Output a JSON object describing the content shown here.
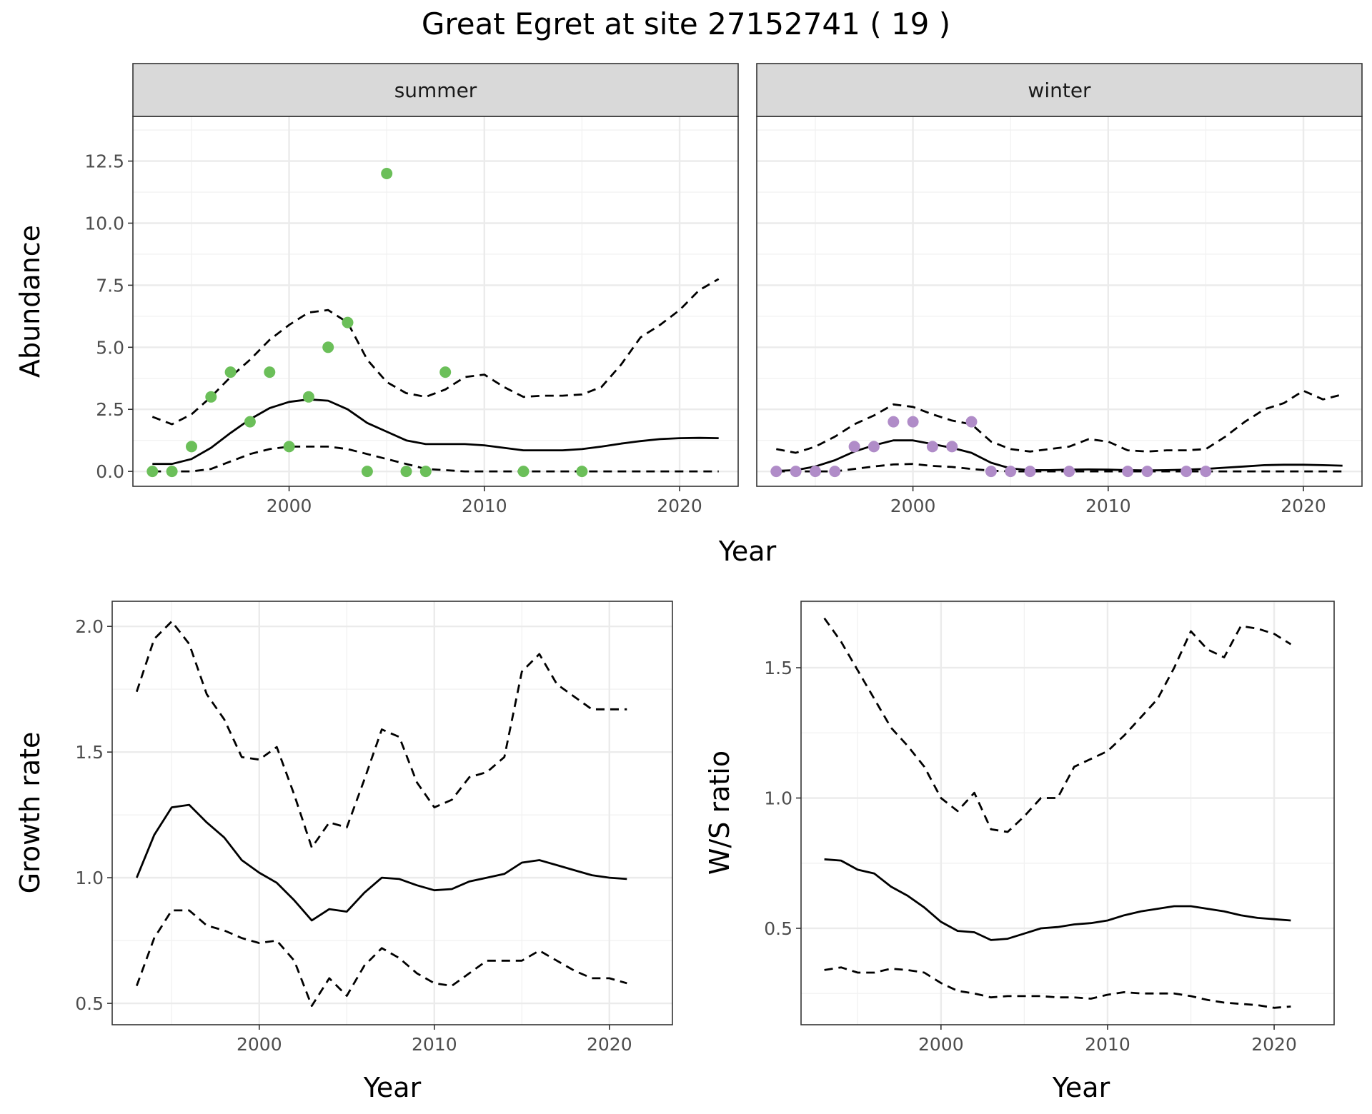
{
  "title": "Great Egret at site 27152741 ( 19 )",
  "colors": {
    "summer_points": "#6BBF59",
    "winter_points": "#B08CC8",
    "line": "#000000",
    "grid_major": "#EBEBEB",
    "grid_minor": "#F2F2F2",
    "strip_bg": "#D9D9D9",
    "strip_border": "#333333",
    "panel_border": "#333333",
    "tick_text": "#4D4D4D"
  },
  "chart_data": [
    {
      "id": "abundance",
      "type": "scatter+line",
      "ylabel": "Abundance",
      "xlabel": "Year",
      "xlim": [
        1992,
        2023
      ],
      "ylim": [
        -0.6,
        14.3
      ],
      "xticks": [
        2000,
        2010,
        2020
      ],
      "yticks": [
        0,
        2.5,
        5,
        7.5,
        10,
        12.5
      ],
      "ytick_labels": [
        "0.0",
        "2.5",
        "5.0",
        "7.5",
        "10.0",
        "12.5"
      ],
      "grid": true,
      "facets": [
        {
          "strip": "summer",
          "point_color": "summer",
          "points": {
            "x": [
              1993,
              1994,
              1995,
              1996,
              1997,
              1998,
              1999,
              2000,
              2001,
              2002,
              2003,
              2004,
              2005,
              2006,
              2007,
              2008,
              2012,
              2015
            ],
            "y": [
              0,
              0,
              1,
              3,
              4,
              2,
              4,
              1,
              3,
              5,
              6,
              0,
              12,
              0,
              0,
              4,
              0,
              0
            ]
          },
          "fit": {
            "x": [
              1993,
              1994,
              1995,
              1996,
              1997,
              1998,
              1999,
              2000,
              2001,
              2002,
              2003,
              2004,
              2005,
              2006,
              2007,
              2008,
              2009,
              2010,
              2011,
              2012,
              2013,
              2014,
              2015,
              2016,
              2017,
              2018,
              2019,
              2020,
              2021,
              2022
            ],
            "y": [
              0.3,
              0.3,
              0.5,
              0.95,
              1.55,
              2.1,
              2.55,
              2.8,
              2.9,
              2.85,
              2.5,
              1.95,
              1.6,
              1.25,
              1.1,
              1.1,
              1.1,
              1.05,
              0.95,
              0.85,
              0.85,
              0.85,
              0.9,
              1.0,
              1.12,
              1.22,
              1.3,
              1.34,
              1.35,
              1.34
            ]
          },
          "upper": {
            "x": [
              1993,
              1994,
              1995,
              1996,
              1997,
              1998,
              1999,
              2000,
              2001,
              2002,
              2003,
              2004,
              2005,
              2006,
              2007,
              2008,
              2009,
              2010,
              2011,
              2012,
              2013,
              2014,
              2015,
              2016,
              2017,
              2018,
              2019,
              2020,
              2021,
              2022
            ],
            "y": [
              2.2,
              1.9,
              2.3,
              3.0,
              3.8,
              4.5,
              5.3,
              5.9,
              6.4,
              6.5,
              6.0,
              4.5,
              3.6,
              3.15,
              3.0,
              3.3,
              3.8,
              3.9,
              3.4,
              3.0,
              3.05,
              3.05,
              3.1,
              3.4,
              4.3,
              5.4,
              5.9,
              6.5,
              7.3,
              7.75
            ]
          },
          "lower": {
            "x": [
              1993,
              1994,
              1995,
              1996,
              1997,
              1998,
              1999,
              2000,
              2001,
              2002,
              2003,
              2004,
              2005,
              2006,
              2007,
              2008,
              2009,
              2010,
              2011,
              2012,
              2013,
              2014,
              2015,
              2016,
              2017,
              2018,
              2019,
              2020,
              2021,
              2022
            ],
            "y": [
              0,
              0,
              0,
              0.1,
              0.4,
              0.7,
              0.9,
              1.0,
              1.0,
              1.0,
              0.9,
              0.7,
              0.5,
              0.3,
              0.1,
              0.05,
              0,
              0,
              0,
              0,
              0,
              0,
              0,
              0,
              0,
              0,
              0,
              0,
              0,
              0
            ]
          }
        },
        {
          "strip": "winter",
          "point_color": "winter",
          "points": {
            "x": [
              1993,
              1994,
              1995,
              1996,
              1997,
              1998,
              1999,
              2000,
              2001,
              2002,
              2003,
              2004,
              2005,
              2006,
              2008,
              2011,
              2012,
              2014,
              2015
            ],
            "y": [
              0,
              0,
              0,
              0,
              1,
              1,
              2,
              2,
              1,
              1,
              2,
              0,
              0,
              0,
              0,
              0,
              0,
              0,
              0
            ]
          },
          "fit": {
            "x": [
              1993,
              1994,
              1995,
              1996,
              1997,
              1998,
              1999,
              2000,
              2001,
              2002,
              2003,
              2004,
              2005,
              2006,
              2007,
              2008,
              2009,
              2010,
              2011,
              2012,
              2013,
              2014,
              2015,
              2016,
              2017,
              2018,
              2019,
              2020,
              2021,
              2022
            ],
            "y": [
              0.02,
              0.05,
              0.2,
              0.45,
              0.8,
              1.05,
              1.25,
              1.25,
              1.1,
              0.95,
              0.75,
              0.35,
              0.12,
              0.05,
              0.05,
              0.07,
              0.08,
              0.07,
              0.05,
              0.04,
              0.05,
              0.07,
              0.1,
              0.15,
              0.2,
              0.25,
              0.27,
              0.27,
              0.25,
              0.23
            ]
          },
          "upper": {
            "x": [
              1993,
              1994,
              1995,
              1996,
              1997,
              1998,
              1999,
              2000,
              2001,
              2002,
              2003,
              2004,
              2005,
              2006,
              2007,
              2008,
              2009,
              2010,
              2011,
              2012,
              2013,
              2014,
              2015,
              2016,
              2017,
              2018,
              2019,
              2020,
              2021,
              2022
            ],
            "y": [
              0.9,
              0.75,
              1.0,
              1.4,
              1.9,
              2.25,
              2.7,
              2.6,
              2.3,
              2.05,
              1.9,
              1.2,
              0.9,
              0.8,
              0.9,
              1.0,
              1.3,
              1.2,
              0.85,
              0.8,
              0.85,
              0.85,
              0.9,
              1.4,
              2.0,
              2.5,
              2.75,
              3.25,
              2.9,
              3.1
            ]
          },
          "lower": {
            "x": [
              1993,
              1994,
              1995,
              1996,
              1997,
              1998,
              1999,
              2000,
              2001,
              2002,
              2003,
              2004,
              2005,
              2006,
              2007,
              2008,
              2009,
              2010,
              2011,
              2012,
              2013,
              2014,
              2015,
              2016,
              2017,
              2018,
              2019,
              2020,
              2021,
              2022
            ],
            "y": [
              0,
              0,
              0,
              0,
              0.1,
              0.2,
              0.28,
              0.3,
              0.22,
              0.18,
              0.1,
              0.03,
              0,
              0,
              0,
              0,
              0,
              0,
              0,
              0,
              0,
              0,
              0,
              0,
              0,
              0,
              0,
              0,
              0,
              0
            ]
          }
        }
      ]
    },
    {
      "id": "growth",
      "type": "line",
      "ylabel": "Growth rate",
      "xlabel": "Year",
      "xlim": [
        1991.6,
        2023.6
      ],
      "ylim": [
        0.415,
        2.1
      ],
      "xticks": [
        2000,
        2010,
        2020
      ],
      "yticks": [
        0.5,
        1.0,
        1.5,
        2.0
      ],
      "ytick_labels": [
        "0.5",
        "1.0",
        "1.5",
        "2.0"
      ],
      "grid": true,
      "x": [
        1993,
        1994,
        1995,
        1996,
        1997,
        1998,
        1999,
        2000,
        2001,
        2002,
        2003,
        2004,
        2005,
        2006,
        2007,
        2008,
        2009,
        2010,
        2011,
        2012,
        2013,
        2014,
        2015,
        2016,
        2017,
        2018,
        2019,
        2020,
        2021
      ],
      "series": [
        {
          "style": "solid",
          "values": [
            1.0,
            1.17,
            1.28,
            1.29,
            1.22,
            1.16,
            1.07,
            1.02,
            0.98,
            0.91,
            0.83,
            0.875,
            0.865,
            0.94,
            1.0,
            0.995,
            0.97,
            0.95,
            0.955,
            0.985,
            1.0,
            1.015,
            1.06,
            1.07,
            1.05,
            1.03,
            1.01,
            1.0,
            0.995
          ]
        },
        {
          "style": "dashed",
          "values": [
            1.74,
            1.95,
            2.02,
            1.93,
            1.73,
            1.63,
            1.48,
            1.47,
            1.52,
            1.33,
            1.12,
            1.22,
            1.2,
            1.39,
            1.59,
            1.56,
            1.38,
            1.28,
            1.31,
            1.4,
            1.42,
            1.48,
            1.82,
            1.89,
            1.77,
            1.72,
            1.67,
            1.67,
            1.67
          ]
        },
        {
          "style": "dashed",
          "values": [
            0.57,
            0.76,
            0.87,
            0.87,
            0.81,
            0.79,
            0.76,
            0.74,
            0.75,
            0.67,
            0.49,
            0.6,
            0.53,
            0.65,
            0.72,
            0.68,
            0.62,
            0.58,
            0.57,
            0.62,
            0.67,
            0.67,
            0.67,
            0.71,
            0.67,
            0.63,
            0.6,
            0.6,
            0.58
          ]
        }
      ]
    },
    {
      "id": "ws_ratio",
      "type": "line",
      "ylabel": "W/S ratio",
      "xlabel": "Year",
      "xlim": [
        1991.6,
        2023.6
      ],
      "ylim": [
        0.13,
        1.755
      ],
      "xticks": [
        2000,
        2010,
        2020
      ],
      "yticks": [
        0.5,
        1.0,
        1.5
      ],
      "ytick_labels": [
        "0.5",
        "1.0",
        "1.5"
      ],
      "grid": true,
      "x": [
        1993,
        1994,
        1995,
        1996,
        1997,
        1998,
        1999,
        2000,
        2001,
        2002,
        2003,
        2004,
        2005,
        2006,
        2007,
        2008,
        2009,
        2010,
        2011,
        2012,
        2013,
        2014,
        2015,
        2016,
        2017,
        2018,
        2019,
        2020,
        2021
      ],
      "series": [
        {
          "style": "solid",
          "values": [
            0.765,
            0.76,
            0.725,
            0.71,
            0.66,
            0.625,
            0.58,
            0.525,
            0.49,
            0.485,
            0.455,
            0.46,
            0.48,
            0.5,
            0.505,
            0.515,
            0.52,
            0.53,
            0.55,
            0.565,
            0.575,
            0.585,
            0.585,
            0.575,
            0.565,
            0.55,
            0.54,
            0.535,
            0.53
          ]
        },
        {
          "style": "dashed",
          "values": [
            1.69,
            1.6,
            1.49,
            1.38,
            1.27,
            1.2,
            1.12,
            1.0,
            0.95,
            1.02,
            0.88,
            0.87,
            0.93,
            1.0,
            1.0,
            1.12,
            1.15,
            1.18,
            1.24,
            1.31,
            1.38,
            1.5,
            1.64,
            1.57,
            1.54,
            1.66,
            1.65,
            1.63,
            1.59
          ]
        },
        {
          "style": "dashed",
          "values": [
            0.34,
            0.35,
            0.33,
            0.33,
            0.345,
            0.34,
            0.33,
            0.29,
            0.26,
            0.25,
            0.235,
            0.24,
            0.24,
            0.24,
            0.235,
            0.235,
            0.23,
            0.245,
            0.255,
            0.25,
            0.25,
            0.25,
            0.24,
            0.225,
            0.215,
            0.21,
            0.205,
            0.195,
            0.2
          ]
        }
      ]
    }
  ]
}
